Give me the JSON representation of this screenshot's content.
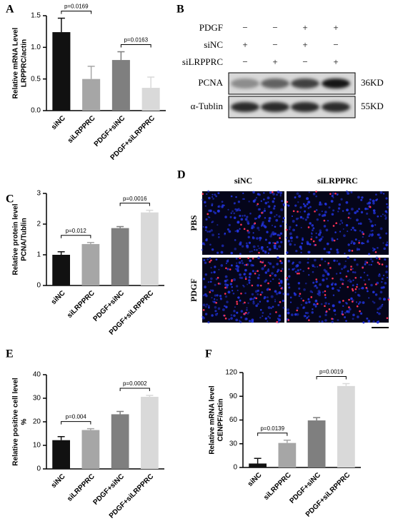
{
  "chart_data": [
    {
      "type": "bar",
      "panel": "A",
      "ylabel": [
        "Relative  mRNA Level",
        "LRPPRC/actin"
      ],
      "categories": [
        "siNC",
        "siLRPPRC",
        "PDGF+siNC",
        "PDGF+siLRPPRC"
      ],
      "values": [
        1.24,
        0.5,
        0.8,
        0.36
      ],
      "errors": [
        0.22,
        0.2,
        0.13,
        0.17
      ],
      "colors": [
        "#111111",
        "#a6a6a6",
        "#7f7f7f",
        "#d9d9d9"
      ],
      "ylim": [
        0,
        1.5
      ],
      "yticks": [
        {
          "value": 0,
          "label": "0.0"
        },
        {
          "value": 0.5,
          "label": "0.5"
        },
        {
          "value": 1,
          "label": "1.0"
        },
        {
          "value": 1.5,
          "label": "1.5"
        }
      ],
      "annotations": [
        "p=0.0169",
        "p=0.0163"
      ]
    },
    {
      "type": "bar",
      "panel": "C",
      "ylabel": [
        "Relative protein level",
        "PCNA/Tublin"
      ],
      "categories": [
        "siNC",
        "siLRPPRC",
        "PDGF+siNC",
        "PDGF+siLRPPRC"
      ],
      "values": [
        1.0,
        1.35,
        1.87,
        2.38
      ],
      "errors": [
        0.1,
        0.05,
        0.05,
        0.07
      ],
      "colors": [
        "#111111",
        "#a6a6a6",
        "#7f7f7f",
        "#d9d9d9"
      ],
      "ylim": [
        0,
        3
      ],
      "yticks": [
        0,
        1,
        2,
        3
      ],
      "annotations": [
        "p=0.012",
        "p=0.0016"
      ]
    },
    {
      "type": "bar",
      "panel": "E",
      "ylabel": [
        "Relative positive cell level",
        "%"
      ],
      "categories": [
        "siNC",
        "siLRPPRC",
        "PDGF+siNC",
        "PDGF+siLRPPRC"
      ],
      "values": [
        12.2,
        16.5,
        23.2,
        30.6
      ],
      "errors": [
        1.5,
        0.6,
        1.2,
        0.6
      ],
      "colors": [
        "#111111",
        "#a6a6a6",
        "#7f7f7f",
        "#d9d9d9"
      ],
      "ylim": [
        0,
        40
      ],
      "yticks": [
        0,
        10,
        20,
        30,
        40
      ],
      "annotations": [
        "p=0.004",
        "p=0.0002"
      ]
    },
    {
      "type": "bar",
      "panel": "F",
      "ylabel": [
        "Relative mRNA level",
        "CENPF/actin"
      ],
      "categories": [
        "siNC",
        "siLRPPRC",
        "PDGF+siNC",
        "PDGF+siLRPPRC"
      ],
      "values": [
        5,
        31,
        59.5,
        103
      ],
      "errors": [
        6.5,
        3.5,
        3.5,
        3
      ],
      "colors": [
        "#111111",
        "#a6a6a6",
        "#7f7f7f",
        "#d9d9d9"
      ],
      "ylim": [
        0,
        120
      ],
      "yticks": [
        0,
        30,
        60,
        90,
        120
      ],
      "annotations": [
        "p=0.0139",
        "p=0.0019"
      ]
    }
  ],
  "blot": {
    "panel": "B",
    "conditions": [
      {
        "label": "PDGF",
        "signs": [
          "−",
          "−",
          "+",
          "+"
        ]
      },
      {
        "label": "siNC",
        "signs": [
          "+",
          "−",
          "+",
          "−"
        ]
      },
      {
        "label": "siLRPPRC",
        "signs": [
          "−",
          "+",
          "−",
          "+"
        ]
      }
    ],
    "bands": [
      {
        "label": "PCNA",
        "size": "36KD"
      },
      {
        "label": "α-Tublin",
        "size": "55KD"
      }
    ]
  },
  "images": {
    "panel": "D",
    "columns": [
      "siNC",
      "siLRPPRC"
    ],
    "rows": [
      "PBS",
      "PDGF"
    ]
  }
}
